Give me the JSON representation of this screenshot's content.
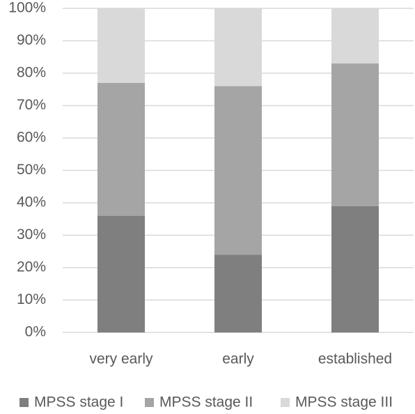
{
  "chart_data": {
    "type": "stacked_bar",
    "categories": [
      "very early",
      "early",
      "established"
    ],
    "series": [
      {
        "name": "MPSS stage I",
        "color": "#7f7f7f",
        "values": [
          36,
          24,
          39
        ]
      },
      {
        "name": "MPSS stage II",
        "color": "#a5a5a5",
        "values": [
          41,
          52,
          44
        ]
      },
      {
        "name": "MPSS stage III",
        "color": "#d9d9d9",
        "values": [
          23,
          24,
          17
        ]
      }
    ],
    "ylim": [
      0,
      100
    ],
    "yticks": [
      {
        "value": 0,
        "label": "0%"
      },
      {
        "value": 10,
        "label": "10%"
      },
      {
        "value": 20,
        "label": "20%"
      },
      {
        "value": 30,
        "label": "30%"
      },
      {
        "value": 40,
        "label": "40%"
      },
      {
        "value": 50,
        "label": "50%"
      },
      {
        "value": 60,
        "label": "60%"
      },
      {
        "value": 70,
        "label": "70%"
      },
      {
        "value": 80,
        "label": "80%"
      },
      {
        "value": 90,
        "label": "90%"
      },
      {
        "value": 100,
        "label": "100%"
      }
    ],
    "grid": true,
    "legend": "bottom"
  }
}
